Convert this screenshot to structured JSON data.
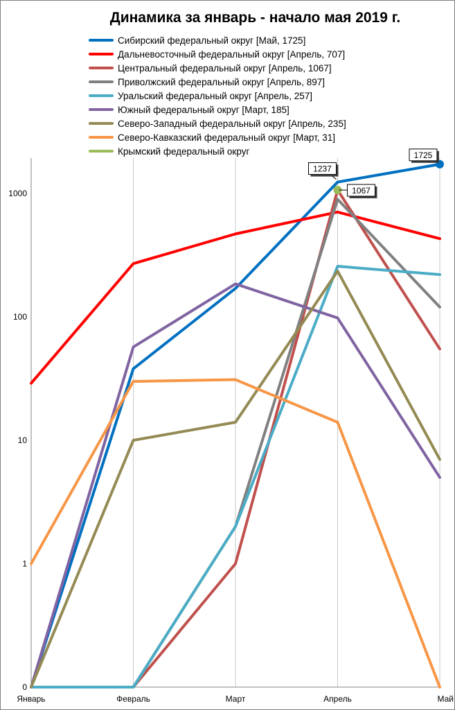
{
  "chart_data": {
    "type": "line",
    "title": "Динамика за январь - начало мая 2019 г.",
    "categories": [
      "Январь",
      "Февраль",
      "Март",
      "Апрель",
      "Май"
    ],
    "y_scale": "log",
    "y_ticks": [
      "0",
      "1",
      "10",
      "100",
      "1000"
    ],
    "grid": "vertical",
    "legend_position": "top",
    "series": [
      {
        "name": "Сибирский федеральный округ [Май, 1725]",
        "color": "#0070c0",
        "values": [
          0,
          38,
          170,
          1237,
          1725
        ]
      },
      {
        "name": "Дальневосточный федеральный округ [Апрель, 707]",
        "color": "#ff0000",
        "values": [
          29,
          270,
          470,
          707,
          430
        ]
      },
      {
        "name": "Центральный федеральный округ [Апрель, 1067]",
        "color": "#c0504d",
        "values": [
          0,
          0,
          1,
          1067,
          55
        ]
      },
      {
        "name": "Приволжский федеральный округ [Апрель, 897]",
        "color": "#808080",
        "values": [
          0,
          0,
          2,
          897,
          120
        ]
      },
      {
        "name": "Уральский федеральный округ [Апрель, 257]",
        "color": "#4bacc6",
        "values": [
          0,
          0,
          2,
          257,
          220
        ]
      },
      {
        "name": "Южный федеральный округ [Март, 185]",
        "color": "#8064a2",
        "values": [
          0,
          57,
          185,
          98,
          5
        ]
      },
      {
        "name": "Северо-Западный федеральный округ [Апрель, 235]",
        "color": "#948a54",
        "values": [
          0,
          10,
          14,
          235,
          7
        ]
      },
      {
        "name": "Северо-Кавказский федеральный округ [Март, 31]",
        "color": "#f79646",
        "values": [
          1,
          30,
          31,
          14,
          0
        ]
      },
      {
        "name": "Крымский федеральный округ",
        "color": "#9bbb59",
        "values": [
          null,
          null,
          null,
          1067,
          null
        ]
      }
    ],
    "annotations": [
      {
        "text": "1237",
        "category": "Апрель",
        "value": 1237
      },
      {
        "text": "1067",
        "category": "Апрель",
        "value": 1067
      },
      {
        "text": "1725",
        "category": "Май",
        "value": 1725
      }
    ]
  }
}
